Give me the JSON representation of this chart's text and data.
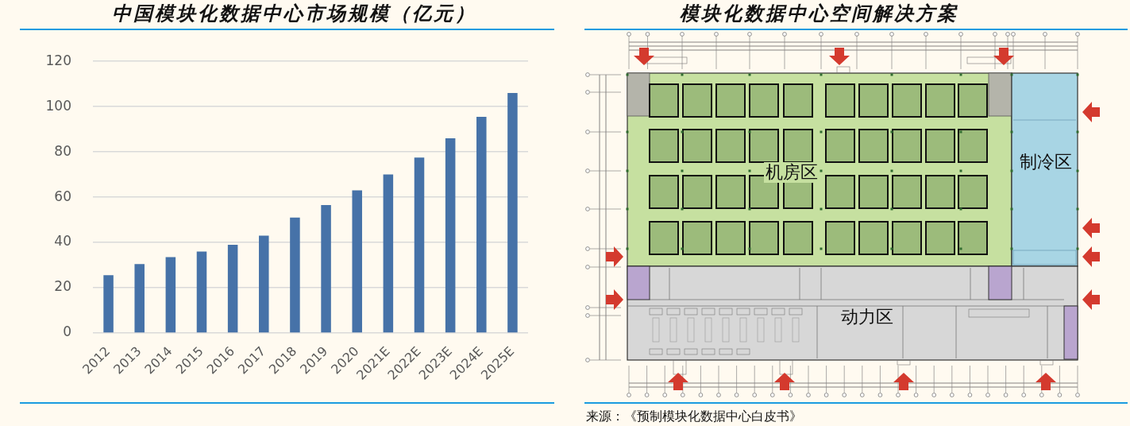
{
  "chart_data": [
    {
      "type": "bar",
      "title": "中国模块化数据中心市场规模（亿元）",
      "categories": [
        "2012",
        "2013",
        "2014",
        "2015",
        "2016",
        "2017",
        "2018",
        "2019",
        "2020",
        "2021E",
        "2022E",
        "2023E",
        "2024E",
        "2025E"
      ],
      "values": [
        25.5,
        30.5,
        33.5,
        36,
        39,
        43,
        51,
        56.5,
        63,
        70,
        77.5,
        86,
        95.5,
        106
      ],
      "color": "#4672a8",
      "ylim": [
        0,
        120
      ],
      "yticks": [
        0,
        20,
        40,
        60,
        80,
        100,
        120
      ],
      "grid": "y"
    },
    {
      "type": "other",
      "title": "模块化数据中心空间解决方案",
      "annotations": [
        "机房区",
        "制冷区",
        "动力区",
        "来源：《预制模块化数据中心白皮书》"
      ]
    }
  ]
}
